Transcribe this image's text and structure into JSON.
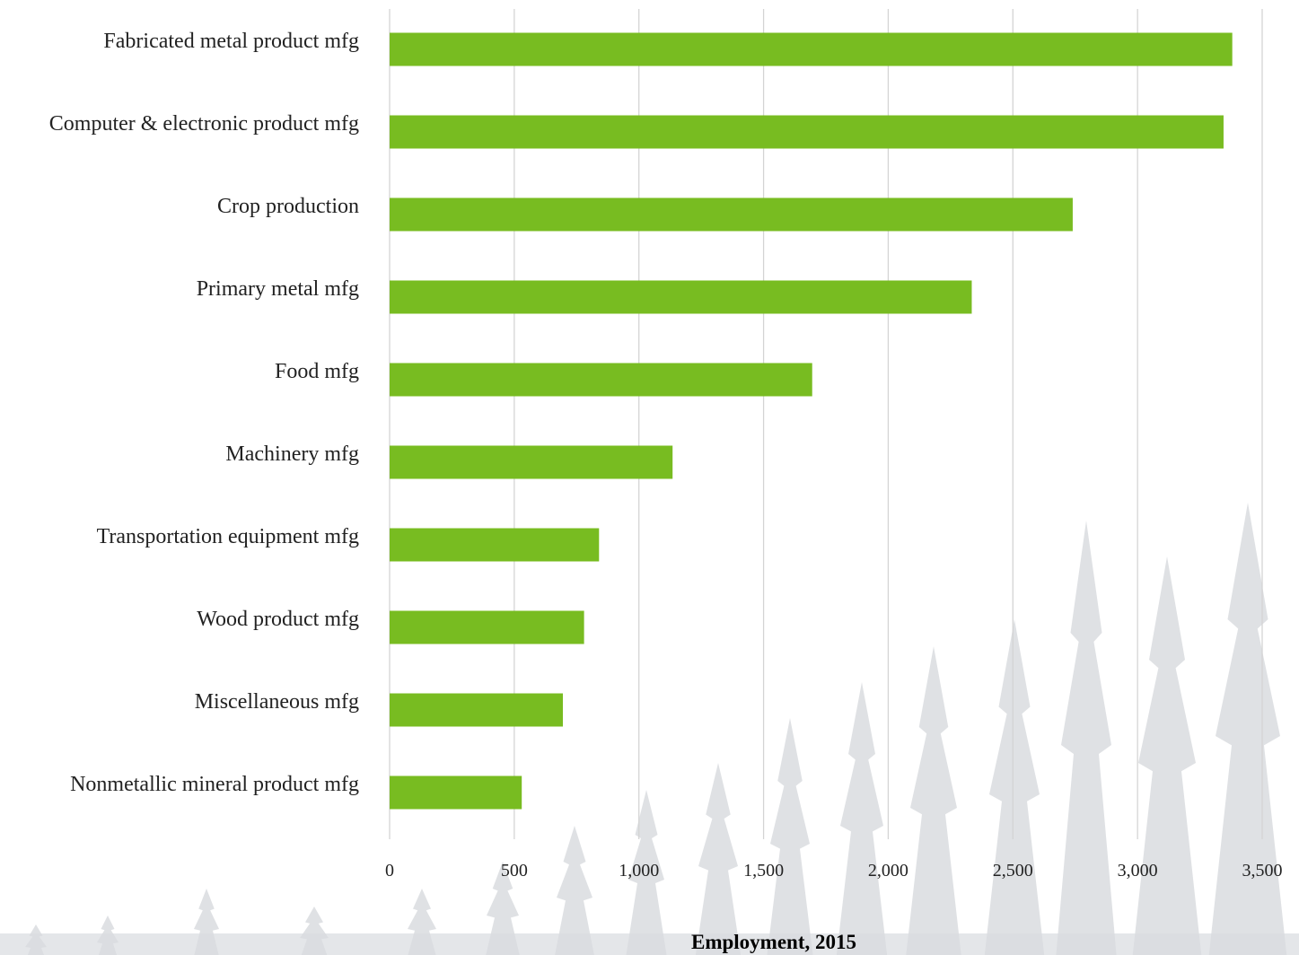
{
  "colors": {
    "bar": "#78bc21",
    "grid": "#d4d4d4",
    "watermark": "#d9dcdf"
  },
  "chart_data": {
    "type": "bar",
    "orientation": "horizontal",
    "categories": [
      "Fabricated metal product mfg",
      "Computer & electronic product mfg",
      "Crop production",
      "Primary metal mfg",
      "Food mfg",
      "Machinery mfg",
      "Transportation equipment mfg",
      "Wood product mfg",
      "Miscellaneous mfg",
      "Nonmetallic mineral product mfg"
    ],
    "values": [
      3380,
      3345,
      2740,
      2335,
      1695,
      1135,
      840,
      780,
      695,
      530
    ],
    "xlabel": "Employment, 2015",
    "xlim": [
      0,
      3500
    ],
    "xticks": [
      0,
      500,
      1000,
      1500,
      2000,
      2500,
      3000,
      3500
    ],
    "xtick_labels": [
      "0",
      "500",
      "1,000",
      "1,500",
      "2,000",
      "2,500",
      "3,000",
      "3,500"
    ],
    "grid": "vertical",
    "legend": "none"
  }
}
